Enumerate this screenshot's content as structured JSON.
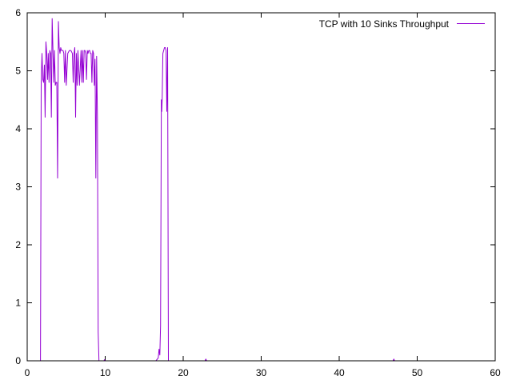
{
  "chart_data": {
    "type": "line",
    "title": "",
    "xlabel": "",
    "ylabel": "",
    "xlim": [
      0,
      60
    ],
    "ylim": [
      0,
      6
    ],
    "xticks": [
      0,
      10,
      20,
      30,
      40,
      50,
      60
    ],
    "yticks": [
      0,
      1,
      2,
      3,
      4,
      5,
      6
    ],
    "grid": false,
    "legend_position": "top-right",
    "series": [
      {
        "name": "TCP with 10 Sinks Throughput",
        "color": "#9400d3",
        "x": [
          0,
          1.7,
          1.8,
          1.9,
          2.0,
          2.1,
          2.2,
          2.3,
          2.4,
          2.5,
          2.6,
          2.7,
          2.8,
          2.9,
          3.0,
          3.1,
          3.2,
          3.3,
          3.4,
          3.5,
          3.6,
          3.7,
          3.8,
          3.9,
          4.0,
          4.1,
          4.2,
          4.3,
          4.4,
          4.5,
          4.6,
          4.7,
          4.8,
          4.9,
          5.0,
          5.2,
          5.4,
          5.6,
          5.8,
          5.9,
          6.0,
          6.1,
          6.2,
          6.3,
          6.4,
          6.5,
          6.7,
          6.9,
          7.0,
          7.1,
          7.2,
          7.3,
          7.4,
          7.5,
          7.6,
          7.7,
          7.8,
          7.9,
          8.0,
          8.1,
          8.2,
          8.3,
          8.4,
          8.5,
          8.6,
          8.7,
          8.8,
          8.9,
          9.0,
          9.1,
          9.2,
          9.3,
          9.4,
          9.5,
          9.6,
          9.7,
          9.8,
          9.85,
          9.9,
          10.0,
          10.1,
          10.2,
          10.3,
          10.4,
          10.5,
          11.0,
          11.1,
          11.2,
          16.5,
          16.8,
          16.9,
          17.0,
          17.1,
          17.2,
          17.25,
          17.3,
          17.4,
          17.5,
          17.6,
          17.7,
          17.8,
          17.9,
          18.0,
          18.1,
          18.2,
          18.25,
          18.3,
          18.4,
          18.5,
          18.6,
          22.8,
          22.9,
          23.0,
          46.9,
          47.0,
          47.1,
          60
        ],
        "y": [
          0,
          0,
          4.8,
          5.3,
          4.85,
          4.8,
          5.1,
          4.2,
          5.5,
          5.3,
          4.85,
          5.3,
          4.8,
          5.35,
          5.3,
          4.2,
          5.9,
          5.35,
          4.8,
          5.35,
          4.75,
          4.8,
          4.8,
          3.15,
          5.85,
          5.4,
          5.3,
          5.4,
          5.35,
          5.35,
          5.35,
          5.3,
          4.8,
          5.35,
          4.75,
          5.3,
          5.35,
          5.35,
          5.3,
          4.8,
          5.3,
          5.4,
          4.2,
          5.3,
          4.75,
          5.35,
          4.75,
          5.35,
          4.8,
          5.35,
          4.8,
          5.35,
          5.35,
          5.3,
          4.85,
          5.35,
          5.3,
          5.35,
          5.35,
          5.3,
          5.3,
          4.8,
          5.35,
          5.3,
          4.75,
          5.2,
          3.15,
          5.25,
          4.2,
          0.5,
          0,
          0,
          0,
          0,
          0,
          0,
          0,
          0,
          0.02,
          0,
          0,
          0,
          0,
          0,
          0,
          0,
          0,
          0,
          0,
          0.05,
          0.2,
          0.1,
          0.6,
          4.5,
          4.3,
          4.5,
          5.3,
          5.35,
          5.4,
          5.4,
          5.35,
          4.3,
          5.4,
          0,
          0,
          0,
          0,
          0,
          0,
          0,
          0,
          0.03,
          0,
          0,
          0.03,
          0,
          0
        ]
      }
    ]
  }
}
